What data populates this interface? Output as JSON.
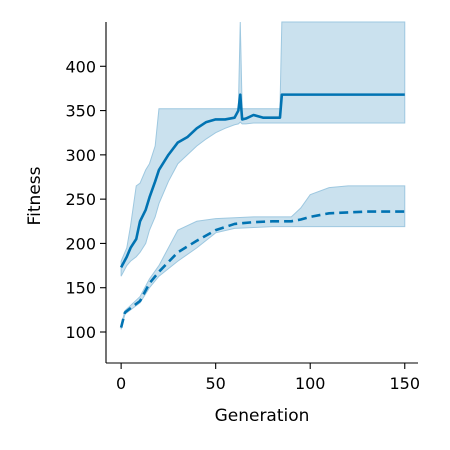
{
  "chart_data": {
    "type": "line",
    "xlabel": "Generation",
    "ylabel": "Fitness",
    "xlim": [
      -8,
      157
    ],
    "ylim": [
      65,
      450
    ],
    "grid": false,
    "legend": "none",
    "xticks": [
      0,
      50,
      100,
      150
    ],
    "yticks": [
      100,
      150,
      200,
      250,
      300,
      350,
      400
    ],
    "colors": {
      "line": "#0173b2",
      "band": "#9ec8e0"
    },
    "series": [
      {
        "style": "solid",
        "x": [
          0,
          3,
          5,
          8,
          10,
          13,
          15,
          18,
          20,
          25,
          30,
          35,
          40,
          45,
          50,
          55,
          60,
          62,
          63,
          64,
          66,
          70,
          75,
          80,
          84,
          85,
          90,
          100,
          110,
          120,
          130,
          140,
          150
        ],
        "y": [
          173,
          185,
          195,
          205,
          225,
          238,
          252,
          270,
          283,
          300,
          314,
          320,
          330,
          337,
          340,
          340,
          342,
          350,
          368,
          340,
          341,
          345,
          342,
          342,
          342,
          368,
          368,
          368,
          368,
          368,
          368,
          368,
          368
        ],
        "lower": [
          163,
          175,
          180,
          185,
          190,
          200,
          215,
          230,
          245,
          270,
          290,
          300,
          310,
          318,
          325,
          330,
          334,
          335,
          337,
          335,
          335,
          336,
          336,
          336,
          336,
          336,
          336,
          336,
          336,
          336,
          336,
          336,
          336
        ],
        "upper": [
          180,
          195,
          220,
          265,
          268,
          283,
          290,
          310,
          352,
          352,
          352,
          352,
          352,
          352,
          352,
          352,
          352,
          352,
          450,
          352,
          352,
          352,
          352,
          352,
          352,
          450,
          450,
          450,
          450,
          450,
          450,
          450,
          450
        ]
      },
      {
        "style": "dashed",
        "x": [
          0,
          2,
          5,
          10,
          15,
          20,
          30,
          40,
          50,
          60,
          70,
          80,
          90,
          95,
          100,
          110,
          120,
          130,
          140,
          150
        ],
        "y": [
          105,
          122,
          127,
          135,
          155,
          168,
          190,
          203,
          215,
          222,
          224,
          225,
          225,
          227,
          230,
          234,
          235,
          236,
          236,
          236
        ],
        "lower": [
          103,
          120,
          125,
          133,
          150,
          163,
          180,
          195,
          212,
          217,
          218,
          219,
          219,
          219,
          219,
          219,
          219,
          219,
          219,
          219
        ],
        "upper": [
          107,
          124,
          130,
          140,
          160,
          175,
          215,
          225,
          228,
          229,
          230,
          230,
          230,
          240,
          255,
          263,
          265,
          265,
          265,
          265
        ]
      }
    ]
  }
}
